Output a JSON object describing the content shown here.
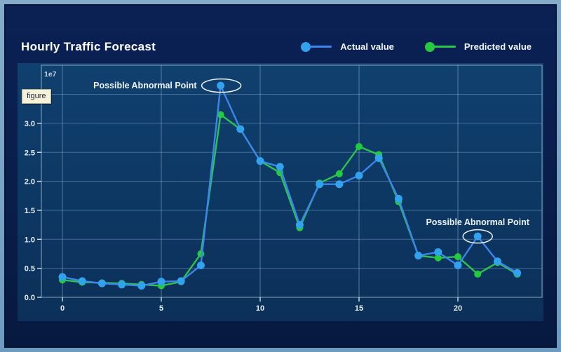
{
  "header": {
    "title": "Hourly Traffic Forecast",
    "legend": [
      {
        "label": "Actual value"
      },
      {
        "label": "Predicted value"
      }
    ]
  },
  "tooltip": {
    "text": "figure"
  },
  "colors": {
    "frame": "#7ba3c6",
    "card_background": "#0a1e4b",
    "plot_background": "#0d3763",
    "grid": "#9cc2dd",
    "actual_line": "#3c85ec",
    "actual_marker": "#31a2ee",
    "predicted_line": "#2cc44e",
    "predicted_marker": "#24cb3e",
    "annotation": "#edf3f9"
  },
  "chart_data": {
    "type": "line",
    "title": "Hourly Traffic Forecast",
    "xlabel": "",
    "ylabel": "",
    "x": [
      0,
      1,
      2,
      3,
      4,
      5,
      6,
      7,
      8,
      9,
      10,
      11,
      12,
      13,
      14,
      15,
      16,
      17,
      18,
      19,
      20,
      21,
      22,
      23
    ],
    "series": [
      {
        "name": "Actual value",
        "line_color": "#3c85ec",
        "marker_color": "#31a2ee",
        "marker_radius": 5.5,
        "values": [
          0.35,
          0.28,
          0.24,
          0.22,
          0.2,
          0.27,
          0.28,
          0.55,
          3.65,
          2.9,
          2.35,
          2.25,
          1.25,
          1.95,
          1.95,
          2.1,
          2.4,
          1.7,
          0.72,
          0.78,
          0.55,
          1.05,
          0.62,
          0.42
        ]
      },
      {
        "name": "Predicted value",
        "line_color": "#2cc44e",
        "marker_color": "#24cb3e",
        "marker_radius": 5,
        "values": [
          0.3,
          0.26,
          0.25,
          0.24,
          0.22,
          0.2,
          0.27,
          0.75,
          3.15,
          2.9,
          2.35,
          2.15,
          1.2,
          1.97,
          2.13,
          2.6,
          2.46,
          1.65,
          0.72,
          0.68,
          0.7,
          0.4,
          0.6,
          0.4
        ]
      }
    ],
    "y_axis": {
      "offset_label": "1e7",
      "tick_labels": [
        "0.0",
        "0.5",
        "1.0",
        "1.5",
        "2.0",
        "2.5",
        "3.0"
      ],
      "tick_values": [
        0,
        0.5,
        1.0,
        1.5,
        2.0,
        2.5,
        3.0
      ],
      "grid_values": [
        0.5,
        1.0,
        1.5,
        2.0,
        2.5,
        3.0,
        3.5
      ],
      "range": [
        0,
        4.0
      ]
    },
    "x_axis": {
      "tick_labels": [
        "0",
        "5",
        "10",
        "15",
        "20"
      ],
      "tick_values": [
        0,
        5,
        10,
        15,
        20
      ],
      "range": [
        -1.1,
        24.3
      ]
    },
    "grid": true,
    "legend_position": "top-right",
    "annotations": [
      {
        "text": "Possible Abnormal Point",
        "x": 8,
        "y": 3.65,
        "placement": "left"
      },
      {
        "text": "Possible Abnormal Point",
        "x": 21,
        "y": 1.05,
        "placement": "above"
      }
    ]
  }
}
